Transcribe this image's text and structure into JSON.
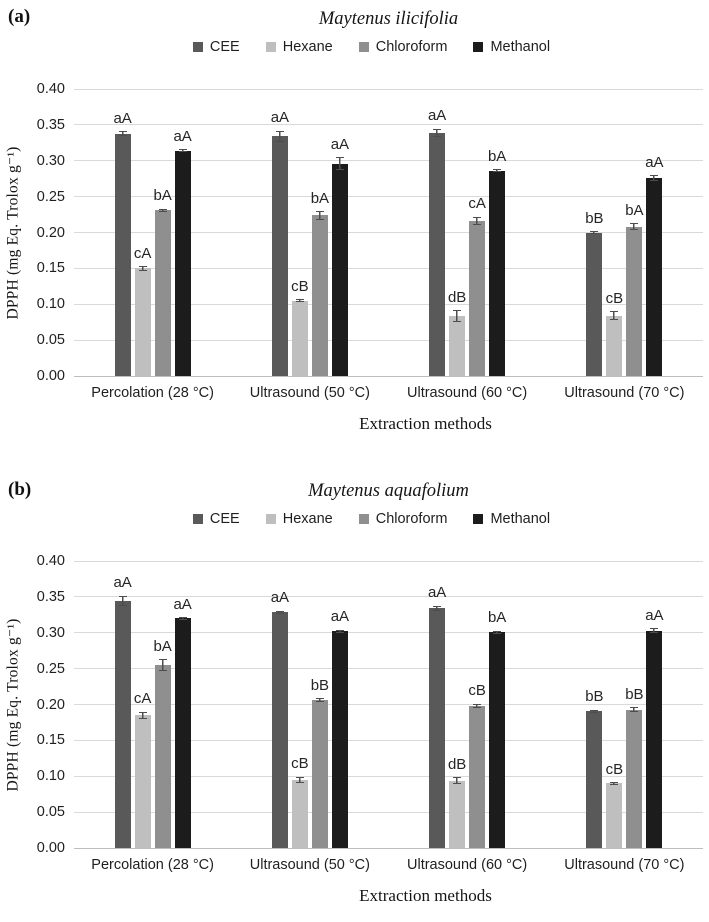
{
  "figure": {
    "type": "two-panel grouped bar chart",
    "accent_colors": {
      "grid": "#d9d9d9",
      "error_bar": "#4d4d4d"
    }
  },
  "chart_data": [
    {
      "type": "bar",
      "panel_label": "(a)",
      "title": "Maytenus ilicifolia",
      "xlabel": "Extraction methods",
      "ylabel": "DPPH (mg Eq. Trolox g⁻¹)",
      "ylim": [
        0,
        0.4
      ],
      "grid": true,
      "legend_position": "top",
      "yticks": [
        "0.00",
        "0.05",
        "0.10",
        "0.15",
        "0.20",
        "0.25",
        "0.30",
        "0.35",
        "0.40"
      ],
      "categories": [
        "Percolation (28 °C)",
        "Ultrasound (50 °C)",
        "Ultrasound (60 °C)",
        "Ultrasound (70 °C)"
      ],
      "series": [
        {
          "name": "CEE",
          "color": "#595959",
          "values": [
            0.338,
            0.334,
            0.339,
            0.2
          ],
          "errors": [
            0.003,
            0.008,
            0.006,
            0.002
          ],
          "labels": [
            "aA",
            "aA",
            "aA",
            "bB"
          ]
        },
        {
          "name": "Hexane",
          "color": "#bfbfbf",
          "values": [
            0.15,
            0.105,
            0.084,
            0.084
          ],
          "errors": [
            0.003,
            0.002,
            0.008,
            0.006
          ],
          "labels": [
            "cA",
            "cB",
            "dB",
            "cB"
          ]
        },
        {
          "name": "Chloroform",
          "color": "#8f8f8f",
          "values": [
            0.231,
            0.224,
            0.216,
            0.208
          ],
          "errors": [
            0.002,
            0.006,
            0.006,
            0.005
          ],
          "labels": [
            "bA",
            "bA",
            "cA",
            "bA"
          ]
        },
        {
          "name": "Methanol",
          "color": "#1c1c1c",
          "values": [
            0.314,
            0.296,
            0.286,
            0.276
          ],
          "errors": [
            0.002,
            0.009,
            0.002,
            0.004
          ],
          "labels": [
            "aA",
            "aA",
            "bA",
            "aA"
          ]
        }
      ]
    },
    {
      "type": "bar",
      "panel_label": "(b)",
      "title": "Maytenus aquafolium",
      "xlabel": "Extraction methods",
      "ylabel": "DPPH (mg Eq. Trolox g⁻¹)",
      "ylim": [
        0,
        0.4
      ],
      "grid": true,
      "legend_position": "top",
      "yticks": [
        "0.00",
        "0.05",
        "0.10",
        "0.15",
        "0.20",
        "0.25",
        "0.30",
        "0.35",
        "0.40"
      ],
      "categories": [
        "Percolation (28 °C)",
        "Ultrasound (50 °C)",
        "Ultrasound (60 °C)",
        "Ultrasound (70 °C)"
      ],
      "series": [
        {
          "name": "CEE",
          "color": "#595959",
          "values": [
            0.345,
            0.329,
            0.334,
            0.191
          ],
          "errors": [
            0.007,
            0.002,
            0.004,
            0.002
          ],
          "labels": [
            "aA",
            "aA",
            "aA",
            "bB"
          ]
        },
        {
          "name": "Hexane",
          "color": "#bfbfbf",
          "values": [
            0.185,
            0.095,
            0.094,
            0.09
          ],
          "errors": [
            0.005,
            0.004,
            0.005,
            0.002
          ],
          "labels": [
            "cA",
            "cB",
            "dB",
            "cB"
          ]
        },
        {
          "name": "Chloroform",
          "color": "#8f8f8f",
          "values": [
            0.255,
            0.206,
            0.198,
            0.193
          ],
          "errors": [
            0.008,
            0.003,
            0.003,
            0.003
          ],
          "labels": [
            "bA",
            "bB",
            "cB",
            "bB"
          ]
        },
        {
          "name": "Methanol",
          "color": "#1c1c1c",
          "values": [
            0.32,
            0.302,
            0.301,
            0.303
          ],
          "errors": [
            0.002,
            0.002,
            0.002,
            0.003
          ],
          "labels": [
            "aA",
            "aA",
            "bA",
            "aA"
          ]
        }
      ]
    }
  ]
}
